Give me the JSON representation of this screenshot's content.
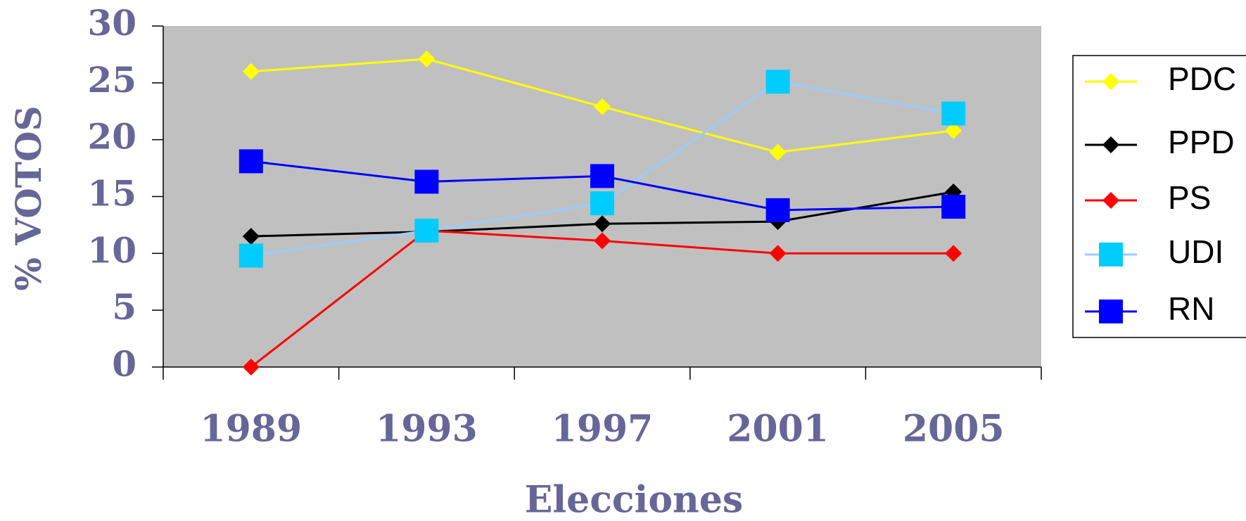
{
  "chart_data": {
    "type": "line",
    "x_label": "Elecciones",
    "y_label": "% VOTOS",
    "categories": [
      "1989",
      "1993",
      "1997",
      "2001",
      "2005"
    ],
    "series": [
      {
        "name": "PDC",
        "color": "#ffff00",
        "marker": "diamond",
        "values": [
          26,
          27.1,
          22.9,
          18.9,
          20.8
        ]
      },
      {
        "name": "PPD",
        "color": "#000000",
        "marker": "diamond",
        "values": [
          11.5,
          11.9,
          12.6,
          12.8,
          15.4
        ]
      },
      {
        "name": "PS",
        "color": "#ff0000",
        "marker": "diamond",
        "values": [
          0,
          12,
          11.1,
          10,
          10
        ]
      },
      {
        "name": "UDI",
        "color": "#99ccff",
        "marker": "square",
        "marker_color": "#00ccff",
        "values": [
          9.8,
          12,
          14.4,
          25.1,
          22.3
        ]
      },
      {
        "name": "RN",
        "color": "#0000ff",
        "marker": "square",
        "values": [
          18.1,
          16.3,
          16.8,
          13.8,
          14.1
        ]
      }
    ],
    "ylim": [
      0,
      30
    ],
    "yticks": [
      0,
      5,
      10,
      15,
      20,
      25,
      30
    ],
    "plot_background": "#c0c0c0",
    "legend": "right"
  }
}
